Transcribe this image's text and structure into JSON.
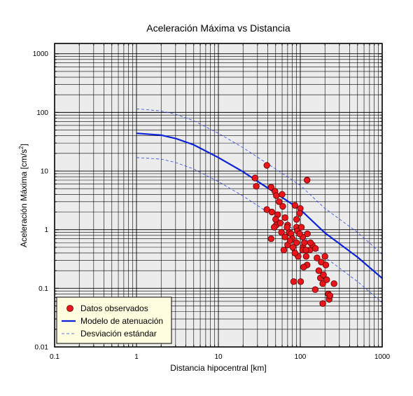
{
  "chart_data": {
    "type": "scatter",
    "title": "Aceleración Máxima vs Distancia",
    "xlabel": "Distancia hipocentral [km]",
    "ylabel_main": "Aceleración Máxima [cm/s",
    "ylabel_sup": "2",
    "ylabel_close": "]",
    "xscale": "log",
    "yscale": "log",
    "xlim": [
      0.1,
      1000
    ],
    "ylim": [
      0.01,
      1500
    ],
    "grid": true,
    "legend_position": "bottom-left",
    "x_ticks": [
      {
        "value": 0.1,
        "label": "0.1"
      },
      {
        "value": 1,
        "label": "1"
      },
      {
        "value": 10,
        "label": "10"
      },
      {
        "value": 100,
        "label": "100"
      },
      {
        "value": 1000,
        "label": "1000"
      }
    ],
    "y_ticks": [
      {
        "value": 0.01,
        "label": "0.01"
      },
      {
        "value": 0.1,
        "label": "0.1"
      },
      {
        "value": 1,
        "label": "1"
      },
      {
        "value": 10,
        "label": "10"
      },
      {
        "value": 100,
        "label": "100"
      },
      {
        "value": 1000,
        "label": "1000"
      }
    ],
    "colors": {
      "points": "#e8161a",
      "model": "#0a22d8",
      "std": "#2c45ee",
      "plot_bg": "#ececec",
      "legend_bg": "#fffde0"
    },
    "series": [
      {
        "name": "Datos observados",
        "kind": "points",
        "points": [
          [
            28,
            7.6
          ],
          [
            29,
            5.5
          ],
          [
            39,
            12.5
          ],
          [
            44,
            5.3
          ],
          [
            39,
            2.2
          ],
          [
            49,
            4.5
          ],
          [
            55,
            3
          ],
          [
            51,
            3.8
          ],
          [
            60,
            4
          ],
          [
            61,
            2.5
          ],
          [
            45,
            2
          ],
          [
            53,
            1.8
          ],
          [
            50,
            1.5
          ],
          [
            51,
            1.2
          ],
          [
            57,
            1.3
          ],
          [
            59,
            0.9
          ],
          [
            65,
            1.6
          ],
          [
            65,
            0.75
          ],
          [
            70,
            1.2
          ],
          [
            70,
            0.55
          ],
          [
            73,
            0.9
          ],
          [
            77,
            0.85
          ],
          [
            80,
            0.7
          ],
          [
            90,
            0.6
          ],
          [
            86,
            2.6
          ],
          [
            90,
            1.5
          ],
          [
            90,
            1.1
          ],
          [
            92,
            0.95
          ],
          [
            100,
            2.3
          ],
          [
            98,
            1.9
          ],
          [
            103,
            1.1
          ],
          [
            107,
            0.75
          ],
          [
            108,
            0.5
          ],
          [
            112,
            0.6
          ],
          [
            118,
            0.35
          ],
          [
            121,
            0.25
          ],
          [
            122,
            0.85
          ],
          [
            131,
            0.45
          ],
          [
            140,
            0.55
          ],
          [
            153,
            0.48
          ],
          [
            160,
            0.33
          ],
          [
            168,
            0.2
          ],
          [
            176,
            0.15
          ],
          [
            180,
            0.28
          ],
          [
            188,
            0.12
          ],
          [
            192,
            0.17
          ],
          [
            200,
            0.35
          ],
          [
            205,
            0.25
          ],
          [
            210,
            0.14
          ],
          [
            220,
            0.08
          ],
          [
            225,
            0.065
          ],
          [
            230,
            0.075
          ],
          [
            258,
            0.12
          ],
          [
            121,
            7.0
          ],
          [
            101,
            0.13
          ],
          [
            83,
            0.13
          ],
          [
            152,
            0.095
          ],
          [
            188,
            0.055
          ],
          [
            63,
            0.45
          ],
          [
            94,
            0.35
          ],
          [
            44,
            0.7
          ],
          [
            48,
            1.1
          ],
          [
            110,
            0.23
          ],
          [
            107,
            0.45
          ],
          [
            133,
            0.6
          ],
          [
            98,
            0.85
          ],
          [
            69,
            1.1
          ],
          [
            81,
            0.5
          ],
          [
            86,
            0.4
          ],
          [
            117,
            0.45
          ],
          [
            75,
            0.65
          ]
        ]
      },
      {
        "name": "Modelo de atenuación",
        "kind": "line",
        "points": [
          [
            1,
            44
          ],
          [
            2,
            41
          ],
          [
            3,
            36
          ],
          [
            5,
            28
          ],
          [
            10,
            17
          ],
          [
            20,
            9.7
          ],
          [
            50,
            4.2
          ],
          [
            100,
            2.2
          ],
          [
            200,
            0.88
          ],
          [
            500,
            0.34
          ],
          [
            1000,
            0.148
          ]
        ]
      },
      {
        "name": "Desviación estándar",
        "kind": "dashed",
        "points": [
          [
            1,
            115
          ],
          [
            2,
            106
          ],
          [
            3,
            93
          ],
          [
            5,
            72
          ],
          [
            10,
            44
          ],
          [
            20,
            25
          ],
          [
            50,
            10.8
          ],
          [
            100,
            5.7
          ],
          [
            200,
            2.3
          ],
          [
            500,
            0.9
          ],
          [
            1000,
            0.38
          ]
        ]
      },
      {
        "kind": "dashed",
        "points": [
          [
            1,
            17
          ],
          [
            2,
            16
          ],
          [
            3,
            14
          ],
          [
            5,
            10.8
          ],
          [
            10,
            6.6
          ],
          [
            20,
            3.75
          ],
          [
            50,
            1.62
          ],
          [
            100,
            0.85
          ],
          [
            200,
            0.34
          ],
          [
            500,
            0.13
          ],
          [
            1000,
            0.057
          ]
        ]
      }
    ]
  }
}
